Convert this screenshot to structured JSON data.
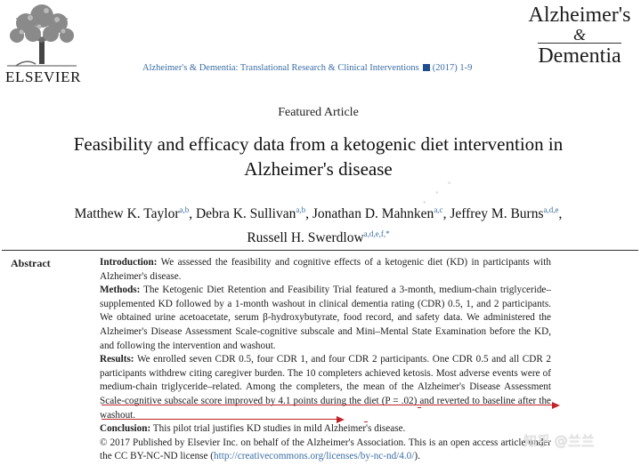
{
  "header": {
    "publisher": "ELSEVIER",
    "journal_line": "Alzheimer's & Dementia: Translational Research & Clinical Interventions",
    "journal_year_pages": "(2017) 1-9",
    "journal_logo": {
      "line1": "Alzheimer's",
      "amp": "&",
      "line2": "Dementia"
    }
  },
  "article": {
    "type": "Featured Article",
    "title_line1": "Feasibility and efficacy data from a ketogenic diet intervention in",
    "title_line2": "Alzheimer's disease",
    "authors": [
      {
        "name": "Matthew K. Taylor",
        "aff": "a,b",
        "sep": ", "
      },
      {
        "name": "Debra K. Sullivan",
        "aff": "a,b",
        "sep": ", "
      },
      {
        "name": "Jonathan D. Mahnken",
        "aff": "a,c",
        "sep": ", "
      },
      {
        "name": "Jeffrey M. Burns",
        "aff": "a,d,e",
        "sep": ","
      }
    ],
    "last_author": {
      "name": "Russell H. Swerdlow",
      "aff": "a,d,e,f,*"
    }
  },
  "abstract": {
    "label": "Abstract",
    "intro_head": "Introduction:",
    "intro_text": " We assessed the feasibility and cognitive effects of a ketogenic diet (KD) in participants with Alzheimer's disease.",
    "methods_head": "Methods:",
    "methods_text": " The Ketogenic Diet Retention and Feasibility Trial featured a 3-month, medium-chain triglyceride–supplemented KD followed by a 1-month washout in clinical dementia rating (CDR) 0.5, 1, and 2 participants. We obtained urine acetoacetate, serum β-hydroxybutyrate, food record, and safety data. We administered the Alzheimer's Disease Assessment Scale-cognitive subscale and Mini–Mental State Examination before the KD, and following the intervention and washout.",
    "results_head": "Results:",
    "results_text": " We enrolled seven CDR 0.5, four CDR 1, and four CDR 2 participants. One CDR 0.5 and all CDR 2 participants withdrew citing caregiver burden. The 10 completers achieved ketosis. Most adverse events were of medium-chain triglyceride–related. Among the completers, the mean of the ",
    "results_highlight_1": "Alzheimer's Disease Assessment Scale-cognitive subscale score improved by 4.1 points during the",
    "results_highlight_2": "diet (P = .02) and reverted to baseline after the washout.",
    "conclusion_head": "Conclusion:",
    "conclusion_text": " This pilot trial justifies KD studies in mild Alzheimer's disease.",
    "copyright_text": "© 2017 Published by Elsevier Inc. on behalf of the Alzheimer's Association. This is an open access article under the CC BY-NC-ND license (",
    "license_url": "http://creativecommons.org/licenses/by-nc-nd/4.0/",
    "copyright_end": ")."
  },
  "overlay": {
    "source_watermark": "知乎 @兰兰"
  },
  "colors": {
    "link": "#3a6ea5",
    "annotation": "#c0242b"
  }
}
